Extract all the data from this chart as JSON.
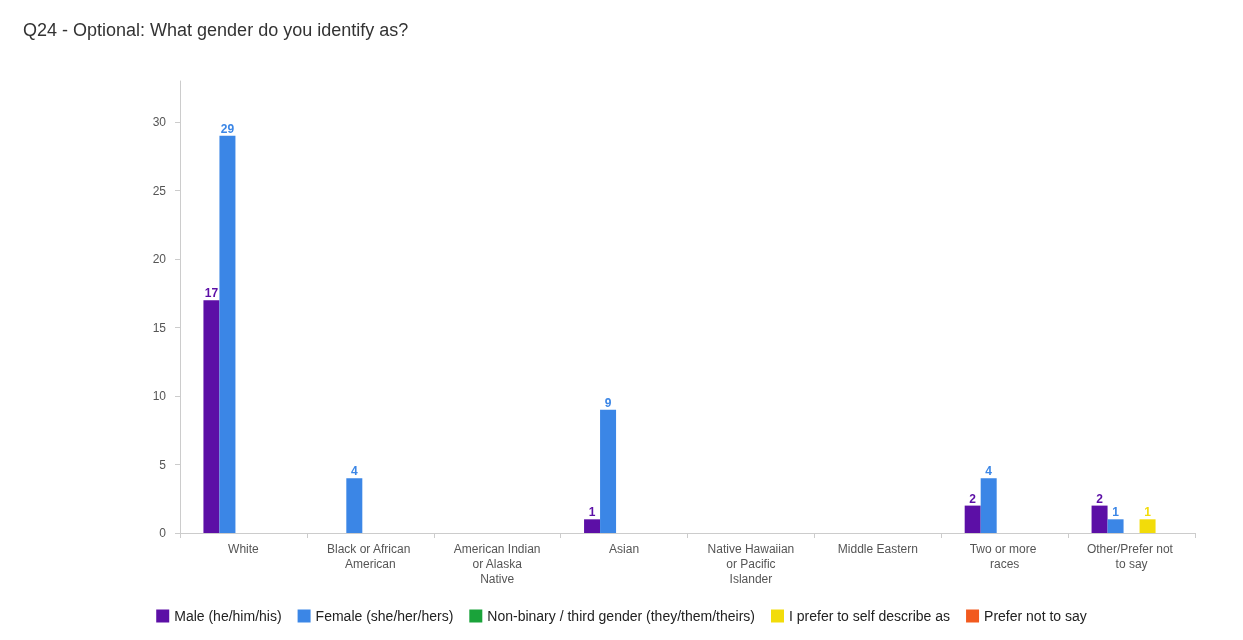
{
  "chart_data": {
    "type": "bar",
    "title": "Q24 - Optional: What gender do you identify as?",
    "categories": [
      "White",
      "Black or African American",
      "American Indian or Alaska Native",
      "Asian",
      "Native Hawaiian or Pacific Islander",
      "Middle Eastern",
      "Two or more races",
      "Other/Prefer not to say"
    ],
    "series": [
      {
        "name": "Male (he/him/his)",
        "color": "#5c0fa6",
        "values": [
          17,
          null,
          null,
          1,
          null,
          null,
          2,
          2
        ]
      },
      {
        "name": "Female (she/her/hers)",
        "color": "#3b86e6",
        "values": [
          29,
          4,
          null,
          9,
          null,
          null,
          4,
          1
        ]
      },
      {
        "name": "Non-binary / third gender (they/them/theirs)",
        "color": "#1aa33a",
        "values": [
          null,
          null,
          null,
          null,
          null,
          null,
          null,
          null
        ]
      },
      {
        "name": "I prefer to self describe as",
        "color": "#f2dc0a",
        "values": [
          null,
          null,
          null,
          null,
          null,
          null,
          null,
          1
        ]
      },
      {
        "name": "Prefer not to say",
        "color": "#f25a1e",
        "values": [
          null,
          null,
          null,
          null,
          null,
          null,
          null,
          null
        ]
      }
    ],
    "ylim": [
      0,
      33
    ],
    "yticks": [
      0,
      5,
      10,
      15,
      20,
      25,
      30
    ],
    "grid": false,
    "legend": "bottom",
    "data_labels": true
  }
}
